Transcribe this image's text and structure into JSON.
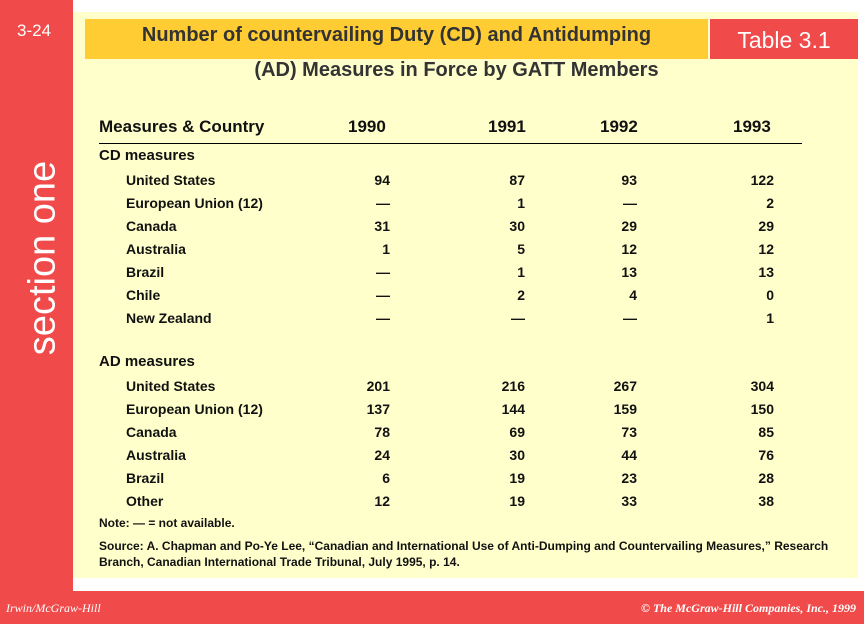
{
  "page_number": "3-24",
  "section_label": "section one",
  "table_tag": "Table 3.1",
  "title_line1": "Number of countervailing Duty (CD) and Antidumping",
  "title_line2": "(AD) Measures in Force by GATT Members",
  "header": {
    "label": "Measures & Country",
    "years": [
      "1990",
      "1991",
      "1992",
      "1993"
    ]
  },
  "cd": {
    "heading": "CD measures",
    "rows": [
      {
        "country": "United States",
        "values": [
          "94",
          "87",
          "93",
          "122"
        ]
      },
      {
        "country": "European Union (12)",
        "values": [
          "—",
          "1",
          "—",
          "2"
        ]
      },
      {
        "country": "Canada",
        "values": [
          "31",
          "30",
          "29",
          "29"
        ]
      },
      {
        "country": "Australia",
        "values": [
          "1",
          "5",
          "12",
          "12"
        ]
      },
      {
        "country": "Brazil",
        "values": [
          "—",
          "1",
          "13",
          "13"
        ]
      },
      {
        "country": "Chile",
        "values": [
          "—",
          "2",
          "4",
          "0"
        ]
      },
      {
        "country": "New Zealand",
        "values": [
          "—",
          "—",
          "—",
          "1"
        ]
      }
    ]
  },
  "ad": {
    "heading": "AD measures",
    "rows": [
      {
        "country": "United States",
        "values": [
          "201",
          "216",
          "267",
          "304"
        ]
      },
      {
        "country": "European Union (12)",
        "values": [
          "137",
          "144",
          "159",
          "150"
        ]
      },
      {
        "country": "Canada",
        "values": [
          "78",
          "69",
          "73",
          "85"
        ]
      },
      {
        "country": "Australia",
        "values": [
          "24",
          "30",
          "44",
          "76"
        ]
      },
      {
        "country": "Brazil",
        "values": [
          "6",
          "19",
          "23",
          "28"
        ]
      },
      {
        "country": "Other",
        "values": [
          "12",
          "19",
          "33",
          "38"
        ]
      }
    ]
  },
  "note": "Note: — = not available.",
  "source": "Source:  A. Chapman and Po-Ye Lee, “Canadian and International Use of Anti-Dumping and Countervailing Measures,” Research Branch, Canadian International Trade Tribunal, July 1995, p. 14.",
  "footer_left": "Irwin/McGraw-Hill",
  "footer_right": "© The McGraw-Hill Companies, Inc., 1999",
  "colors": {
    "accent_red": "#f04a4a",
    "title_band": "#ffcc33",
    "content_bg": "#ffffcc"
  }
}
